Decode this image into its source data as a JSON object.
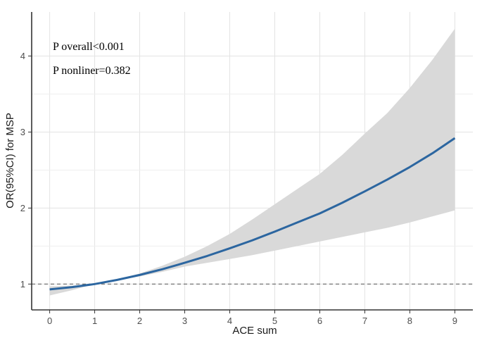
{
  "chart_data": {
    "type": "line",
    "title": "",
    "xlabel": "ACE sum",
    "ylabel": "OR(95%CI) for MSP",
    "xlim": [
      -0.4,
      9.4
    ],
    "ylim": [
      0.66,
      4.58
    ],
    "x_ticks": [
      0,
      1,
      2,
      3,
      4,
      5,
      6,
      7,
      8,
      9
    ],
    "y_ticks": [
      1,
      2,
      3,
      4
    ],
    "grid": true,
    "reference_line": {
      "y": 1,
      "style": "dashed"
    },
    "annotations": [
      "P overall<0.001",
      "P nonliner=0.382"
    ],
    "series": [
      {
        "name": "OR",
        "x": [
          0,
          0.5,
          1,
          1.5,
          2,
          2.5,
          3,
          3.5,
          4,
          4.5,
          5,
          5.5,
          6,
          6.5,
          7,
          7.5,
          8,
          8.5,
          9
        ],
        "y": [
          0.93,
          0.96,
          1.0,
          1.055,
          1.12,
          1.195,
          1.28,
          1.37,
          1.47,
          1.575,
          1.69,
          1.81,
          1.93,
          2.07,
          2.22,
          2.375,
          2.54,
          2.72,
          2.92
        ],
        "lower": [
          0.85,
          0.92,
          1.0,
          1.05,
          1.1,
          1.16,
          1.23,
          1.28,
          1.33,
          1.38,
          1.44,
          1.5,
          1.56,
          1.62,
          1.68,
          1.74,
          1.81,
          1.89,
          1.97
        ],
        "upper": [
          0.97,
          0.98,
          1.0,
          1.06,
          1.14,
          1.24,
          1.36,
          1.5,
          1.66,
          1.85,
          2.05,
          2.25,
          2.45,
          2.7,
          2.98,
          3.25,
          3.58,
          3.95,
          4.36
        ],
        "color": "#2c66a0",
        "band_color": "#d9d9d9"
      }
    ]
  }
}
